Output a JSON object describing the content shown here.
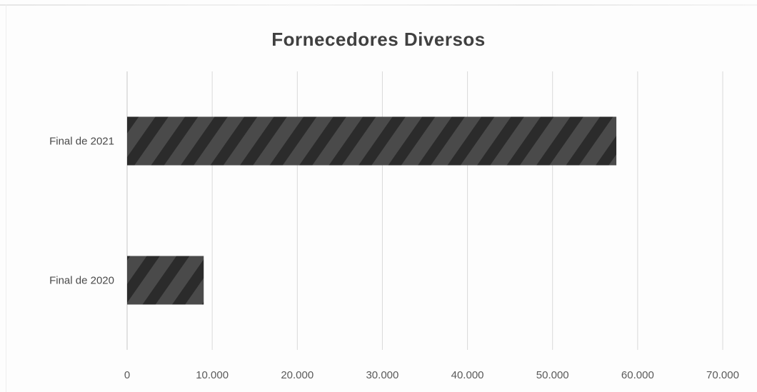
{
  "chart_data": {
    "type": "bar",
    "orientation": "horizontal",
    "title": "Fornecedores Diversos",
    "categories": [
      "Final de 2021",
      "Final de 2020"
    ],
    "series": [
      {
        "values": [
          57500,
          9000
        ]
      }
    ],
    "xlim": [
      0,
      70000
    ],
    "x_ticks": [
      0,
      10000,
      20000,
      30000,
      40000,
      50000,
      60000,
      70000
    ],
    "x_tick_labels": [
      "0",
      "10.000",
      "20.000",
      "30.000",
      "40.000",
      "50.000",
      "60.000",
      "70.000"
    ],
    "xlabel": "",
    "ylabel": "",
    "grid": true,
    "legend": "none",
    "bar_color": "#4a4a4a",
    "bar_hatch_color": "#2a2a2a",
    "bar_fill": "diagonal-hatch"
  }
}
